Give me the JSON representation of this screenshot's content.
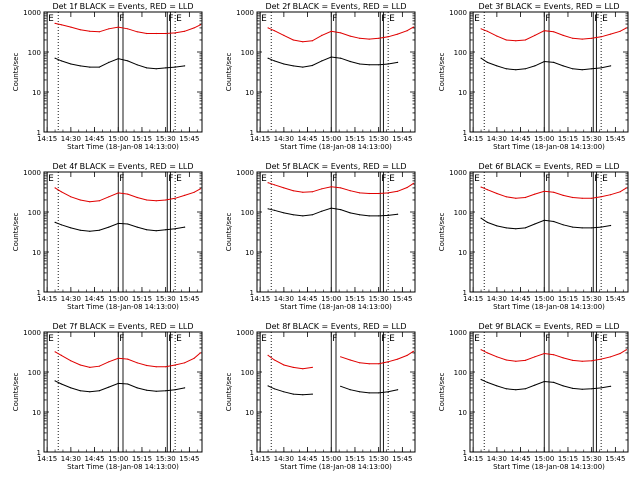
{
  "figure": {
    "background": "#ffffff",
    "axis_color": "#000000",
    "events_color": "#000000",
    "lld_color": "#e00000",
    "xlabel": "Start Time (18-Jan-08 14:13:00)",
    "ylabel": "Counts/sec",
    "x_ticks": [
      "14:15",
      "14:30",
      "14:45",
      "15:00",
      "15:15",
      "15:30",
      "15:45"
    ],
    "y_ticks": [
      "1",
      "10",
      "100",
      "1000"
    ],
    "grid": false
  },
  "chart_data": [
    {
      "type": "line",
      "title": "Det 1f BLACK = Events, RED = LLD",
      "xlabel": "Start Time (18-Jan-08 14:13:00)",
      "ylabel": "Counts/sec",
      "xlim": [
        "14:13",
        "15:53"
      ],
      "ylim": [
        1,
        1000
      ],
      "yscale": "log",
      "x": [
        "14:20",
        "14:24",
        "14:30",
        "14:36",
        "14:42",
        "14:48",
        "14:54",
        "15:00",
        "15:06",
        "15:12",
        "15:18",
        "15:24",
        "15:30",
        "15:36",
        "15:42",
        "15:48",
        "15:52"
      ],
      "series": [
        {
          "name": "LLD",
          "color": "#e00000",
          "values": [
            520,
            480,
            420,
            360,
            330,
            320,
            380,
            420,
            380,
            320,
            290,
            290,
            290,
            300,
            330,
            400,
            480
          ]
        },
        {
          "name": "Events",
          "color": "#000000",
          "values": [
            70,
            60,
            50,
            45,
            42,
            42,
            55,
            68,
            60,
            48,
            40,
            38,
            40,
            42,
            45,
            null,
            null
          ]
        }
      ],
      "markers": [
        {
          "label": "E",
          "x": "14:15",
          "style": "solid"
        },
        {
          "label": "",
          "x": "14:22",
          "style": "dotted"
        },
        {
          "label": "F",
          "x": "15:00",
          "style": "solid"
        },
        {
          "label": "",
          "x": "15:03",
          "style": "solid"
        },
        {
          "label": "F",
          "x": "15:31",
          "style": "solid"
        },
        {
          "label": "",
          "x": "15:33",
          "style": "solid"
        },
        {
          "label": "E",
          "x": "15:36",
          "style": "dotted"
        }
      ]
    },
    {
      "type": "line",
      "title": "Det 2f BLACK = Events, RED = LLD",
      "xlabel": "Start Time (18-Jan-08 14:13:00)",
      "ylabel": "Counts/sec",
      "xlim": [
        "14:13",
        "15:53"
      ],
      "ylim": [
        1,
        1000
      ],
      "yscale": "log",
      "x": [
        "14:20",
        "14:24",
        "14:30",
        "14:36",
        "14:42",
        "14:48",
        "14:54",
        "15:00",
        "15:06",
        "15:12",
        "15:18",
        "15:24",
        "15:30",
        "15:36",
        "15:42",
        "15:48",
        "15:52"
      ],
      "series": [
        {
          "name": "LLD",
          "color": "#e00000",
          "values": [
            400,
            340,
            260,
            200,
            180,
            190,
            260,
            330,
            300,
            250,
            220,
            210,
            220,
            240,
            280,
            340,
            420
          ]
        },
        {
          "name": "Events",
          "color": "#000000",
          "values": [
            70,
            60,
            50,
            45,
            42,
            46,
            60,
            75,
            70,
            58,
            50,
            48,
            48,
            50,
            55,
            null,
            null
          ]
        }
      ],
      "markers": [
        {
          "label": "E",
          "x": "14:15",
          "style": "solid"
        },
        {
          "label": "",
          "x": "14:22",
          "style": "dotted"
        },
        {
          "label": "F",
          "x": "15:00",
          "style": "solid"
        },
        {
          "label": "",
          "x": "15:03",
          "style": "solid"
        },
        {
          "label": "F",
          "x": "15:31",
          "style": "solid"
        },
        {
          "label": "",
          "x": "15:33",
          "style": "solid"
        },
        {
          "label": "E",
          "x": "15:36",
          "style": "dotted"
        }
      ]
    },
    {
      "type": "line",
      "title": "Det 3f BLACK = Events, RED = LLD",
      "xlabel": "Start Time (18-Jan-08 14:13:00)",
      "ylabel": "Counts/sec",
      "xlim": [
        "14:13",
        "15:53"
      ],
      "ylim": [
        1,
        1000
      ],
      "yscale": "log",
      "x": [
        "14:20",
        "14:24",
        "14:30",
        "14:36",
        "14:42",
        "14:48",
        "14:54",
        "15:00",
        "15:06",
        "15:12",
        "15:18",
        "15:24",
        "15:30",
        "15:36",
        "15:42",
        "15:48",
        "15:52"
      ],
      "series": [
        {
          "name": "LLD",
          "color": "#e00000",
          "values": [
            380,
            330,
            250,
            200,
            190,
            200,
            260,
            340,
            320,
            260,
            220,
            210,
            220,
            240,
            280,
            330,
            400
          ]
        },
        {
          "name": "Events",
          "color": "#000000",
          "values": [
            70,
            55,
            45,
            38,
            36,
            38,
            45,
            58,
            55,
            45,
            38,
            36,
            38,
            40,
            45,
            null,
            null
          ]
        }
      ],
      "markers": [
        {
          "label": "E",
          "x": "14:15",
          "style": "solid"
        },
        {
          "label": "",
          "x": "14:22",
          "style": "dotted"
        },
        {
          "label": "F",
          "x": "15:00",
          "style": "solid"
        },
        {
          "label": "",
          "x": "15:03",
          "style": "solid"
        },
        {
          "label": "F",
          "x": "15:31",
          "style": "solid"
        },
        {
          "label": "",
          "x": "15:33",
          "style": "solid"
        },
        {
          "label": "E",
          "x": "15:36",
          "style": "dotted"
        }
      ]
    },
    {
      "type": "line",
      "title": "Det 4f BLACK = Events, RED = LLD",
      "xlabel": "Start Time (18-Jan-08 14:13:00)",
      "ylabel": "Counts/sec",
      "xlim": [
        "14:13",
        "15:53"
      ],
      "ylim": [
        1,
        1000
      ],
      "yscale": "log",
      "x": [
        "14:20",
        "14:24",
        "14:30",
        "14:36",
        "14:42",
        "14:48",
        "14:54",
        "15:00",
        "15:06",
        "15:12",
        "15:18",
        "15:24",
        "15:30",
        "15:36",
        "15:42",
        "15:48",
        "15:52"
      ],
      "series": [
        {
          "name": "LLD",
          "color": "#e00000",
          "values": [
            400,
            320,
            240,
            200,
            180,
            190,
            240,
            300,
            280,
            230,
            200,
            190,
            200,
            220,
            260,
            310,
            380
          ]
        },
        {
          "name": "Events",
          "color": "#000000",
          "values": [
            55,
            48,
            40,
            35,
            33,
            35,
            42,
            52,
            50,
            42,
            36,
            34,
            36,
            38,
            42,
            null,
            null
          ]
        }
      ],
      "markers": [
        {
          "label": "E",
          "x": "14:15",
          "style": "solid"
        },
        {
          "label": "",
          "x": "14:22",
          "style": "dotted"
        },
        {
          "label": "F",
          "x": "15:00",
          "style": "solid"
        },
        {
          "label": "",
          "x": "15:03",
          "style": "solid"
        },
        {
          "label": "F",
          "x": "15:31",
          "style": "solid"
        },
        {
          "label": "",
          "x": "15:33",
          "style": "solid"
        },
        {
          "label": "E",
          "x": "15:36",
          "style": "dotted"
        }
      ]
    },
    {
      "type": "line",
      "title": "Det 5f BLACK = Events, RED = LLD",
      "xlabel": "Start Time (18-Jan-08 14:13:00)",
      "ylabel": "Counts/sec",
      "xlim": [
        "14:13",
        "15:53"
      ],
      "ylim": [
        1,
        1000
      ],
      "yscale": "log",
      "x": [
        "14:20",
        "14:24",
        "14:30",
        "14:36",
        "14:42",
        "14:48",
        "14:54",
        "15:00",
        "15:06",
        "15:12",
        "15:18",
        "15:24",
        "15:30",
        "15:36",
        "15:42",
        "15:48",
        "15:52"
      ],
      "series": [
        {
          "name": "LLD",
          "color": "#e00000",
          "values": [
            540,
            480,
            400,
            340,
            310,
            320,
            380,
            430,
            400,
            340,
            300,
            290,
            290,
            300,
            330,
            410,
            520
          ]
        },
        {
          "name": "Events",
          "color": "#000000",
          "values": [
            120,
            110,
            95,
            85,
            80,
            85,
            105,
            125,
            115,
            95,
            85,
            80,
            80,
            82,
            88,
            null,
            null
          ]
        }
      ],
      "markers": [
        {
          "label": "E",
          "x": "14:15",
          "style": "solid"
        },
        {
          "label": "",
          "x": "14:22",
          "style": "dotted"
        },
        {
          "label": "F",
          "x": "15:00",
          "style": "solid"
        },
        {
          "label": "",
          "x": "15:03",
          "style": "solid"
        },
        {
          "label": "F",
          "x": "15:31",
          "style": "solid"
        },
        {
          "label": "",
          "x": "15:33",
          "style": "solid"
        },
        {
          "label": "E",
          "x": "15:36",
          "style": "dotted"
        }
      ]
    },
    {
      "type": "line",
      "title": "Det 6f BLACK = Events, RED = LLD",
      "xlabel": "Start Time (18-Jan-08 14:13:00)",
      "ylabel": "Counts/sec",
      "xlim": [
        "14:13",
        "15:53"
      ],
      "ylim": [
        1,
        1000
      ],
      "yscale": "log",
      "x": [
        "14:20",
        "14:24",
        "14:30",
        "14:36",
        "14:42",
        "14:48",
        "14:54",
        "15:00",
        "15:06",
        "15:12",
        "15:18",
        "15:24",
        "15:30",
        "15:36",
        "15:42",
        "15:48",
        "15:52"
      ],
      "series": [
        {
          "name": "LLD",
          "color": "#e00000",
          "values": [
            420,
            360,
            290,
            240,
            220,
            230,
            280,
            330,
            310,
            260,
            230,
            220,
            220,
            240,
            270,
            320,
            400
          ]
        },
        {
          "name": "Events",
          "color": "#000000",
          "values": [
            70,
            55,
            45,
            40,
            38,
            40,
            50,
            62,
            58,
            48,
            42,
            40,
            40,
            42,
            46,
            null,
            null
          ]
        }
      ],
      "markers": [
        {
          "label": "E",
          "x": "14:15",
          "style": "solid"
        },
        {
          "label": "",
          "x": "14:22",
          "style": "dotted"
        },
        {
          "label": "F",
          "x": "15:00",
          "style": "solid"
        },
        {
          "label": "",
          "x": "15:03",
          "style": "solid"
        },
        {
          "label": "F",
          "x": "15:31",
          "style": "solid"
        },
        {
          "label": "",
          "x": "15:33",
          "style": "solid"
        },
        {
          "label": "E",
          "x": "15:36",
          "style": "dotted"
        }
      ]
    },
    {
      "type": "line",
      "title": "Det 7f BLACK = Events, RED = LLD",
      "xlabel": "Start Time (18-Jan-08 14:13:00)",
      "ylabel": "Counts/sec",
      "xlim": [
        "14:13",
        "15:53"
      ],
      "ylim": [
        1,
        1000
      ],
      "yscale": "log",
      "x": [
        "14:20",
        "14:24",
        "14:30",
        "14:36",
        "14:42",
        "14:48",
        "14:54",
        "15:00",
        "15:06",
        "15:12",
        "15:18",
        "15:24",
        "15:30",
        "15:36",
        "15:42",
        "15:48",
        "15:52"
      ],
      "series": [
        {
          "name": "LLD",
          "color": "#e00000",
          "values": [
            320,
            260,
            190,
            150,
            130,
            140,
            180,
            220,
            210,
            170,
            145,
            135,
            135,
            150,
            170,
            220,
            300
          ]
        },
        {
          "name": "Events",
          "color": "#000000",
          "values": [
            60,
            50,
            40,
            34,
            32,
            34,
            42,
            52,
            50,
            40,
            35,
            33,
            34,
            36,
            40,
            null,
            null
          ]
        }
      ],
      "markers": [
        {
          "label": "E",
          "x": "14:15",
          "style": "solid"
        },
        {
          "label": "",
          "x": "14:22",
          "style": "dotted"
        },
        {
          "label": "F",
          "x": "15:00",
          "style": "solid"
        },
        {
          "label": "",
          "x": "15:03",
          "style": "solid"
        },
        {
          "label": "F",
          "x": "15:31",
          "style": "solid"
        },
        {
          "label": "",
          "x": "15:33",
          "style": "solid"
        },
        {
          "label": "E",
          "x": "15:36",
          "style": "dotted"
        }
      ]
    },
    {
      "type": "line",
      "title": "Det 8f BLACK = Events, RED = LLD",
      "xlabel": "Start Time (18-Jan-08 14:13:00)",
      "ylabel": "Counts/sec",
      "xlim": [
        "14:13",
        "15:53"
      ],
      "ylim": [
        1,
        1000
      ],
      "yscale": "log",
      "x": [
        "14:20",
        "14:24",
        "14:30",
        "14:36",
        "14:42",
        "14:48",
        "14:54",
        "15:00",
        "15:06",
        "15:12",
        "15:18",
        "15:24",
        "15:30",
        "15:36",
        "15:42",
        "15:48",
        "15:52"
      ],
      "series": [
        {
          "name": "LLD",
          "color": "#e00000",
          "values": [
            260,
            200,
            150,
            130,
            120,
            130,
            null,
            null,
            240,
            200,
            170,
            160,
            160,
            180,
            210,
            260,
            330
          ]
        },
        {
          "name": "Events",
          "color": "#000000",
          "values": [
            45,
            38,
            32,
            28,
            27,
            28,
            null,
            null,
            44,
            36,
            32,
            30,
            30,
            32,
            36,
            null,
            null
          ]
        }
      ],
      "markers": [
        {
          "label": "E",
          "x": "14:15",
          "style": "solid"
        },
        {
          "label": "",
          "x": "14:22",
          "style": "dotted"
        },
        {
          "label": "F",
          "x": "15:00",
          "style": "solid"
        },
        {
          "label": "",
          "x": "15:03",
          "style": "solid"
        },
        {
          "label": "F",
          "x": "15:31",
          "style": "solid"
        },
        {
          "label": "",
          "x": "15:33",
          "style": "solid"
        },
        {
          "label": "E",
          "x": "15:36",
          "style": "dotted"
        }
      ]
    },
    {
      "type": "line",
      "title": "Det 9f BLACK = Events, RED = LLD",
      "xlabel": "Start Time (18-Jan-08 14:13:00)",
      "ylabel": "Counts/sec",
      "xlim": [
        "14:13",
        "15:53"
      ],
      "ylim": [
        1,
        1000
      ],
      "yscale": "log",
      "x": [
        "14:20",
        "14:24",
        "14:30",
        "14:36",
        "14:42",
        "14:48",
        "14:54",
        "15:00",
        "15:06",
        "15:12",
        "15:18",
        "15:24",
        "15:30",
        "15:36",
        "15:42",
        "15:48",
        "15:52"
      ],
      "series": [
        {
          "name": "LLD",
          "color": "#e00000",
          "values": [
            360,
            300,
            240,
            200,
            185,
            195,
            240,
            290,
            270,
            225,
            195,
            185,
            190,
            210,
            240,
            290,
            360
          ]
        },
        {
          "name": "Events",
          "color": "#000000",
          "values": [
            65,
            55,
            45,
            38,
            36,
            38,
            47,
            58,
            55,
            45,
            39,
            37,
            38,
            40,
            44,
            null,
            null
          ]
        }
      ],
      "markers": [
        {
          "label": "E",
          "x": "14:15",
          "style": "solid"
        },
        {
          "label": "",
          "x": "14:22",
          "style": "dotted"
        },
        {
          "label": "F",
          "x": "15:00",
          "style": "solid"
        },
        {
          "label": "",
          "x": "15:03",
          "style": "solid"
        },
        {
          "label": "F",
          "x": "15:31",
          "style": "solid"
        },
        {
          "label": "",
          "x": "15:33",
          "style": "solid"
        },
        {
          "label": "E",
          "x": "15:36",
          "style": "dotted"
        }
      ]
    }
  ]
}
